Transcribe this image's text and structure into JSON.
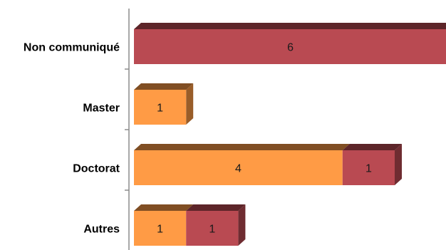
{
  "chart_data": {
    "type": "bar",
    "orientation": "horizontal",
    "stacked": true,
    "three_d": true,
    "categories": [
      "Non communiqué",
      "Master",
      "Doctorat",
      "Autres"
    ],
    "series": [
      {
        "color": "#FF9B45",
        "values": [
          0,
          1,
          4,
          1
        ]
      },
      {
        "color": "#B94A52",
        "values": [
          6,
          0,
          1,
          1
        ]
      }
    ],
    "xlim": [
      0,
      6
    ],
    "grid": false,
    "legend": "none",
    "title": "",
    "xlabel": "",
    "ylabel": ""
  }
}
